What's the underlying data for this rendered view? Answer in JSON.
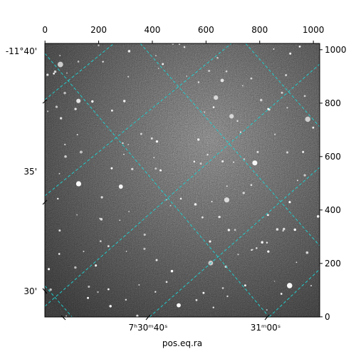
{
  "chart_data": {
    "type": "image",
    "xlabel": "pos.eq.ra",
    "xlim": [
      -0.5,
      1023.5
    ],
    "ylim": [
      -0.5,
      1023.5
    ],
    "xticks": [
      0,
      200,
      400,
      600,
      800,
      1000
    ],
    "yticks": [
      0,
      200,
      400,
      600,
      800,
      1000
    ],
    "world_yticks": [
      "-11°40'",
      "35'",
      "30'"
    ],
    "world_xticks": [
      "7ʰ30ᵐ40ˢ",
      "31ᵐ00ˢ"
    ],
    "grid": true,
    "grid_color": "#22cccc"
  }
}
